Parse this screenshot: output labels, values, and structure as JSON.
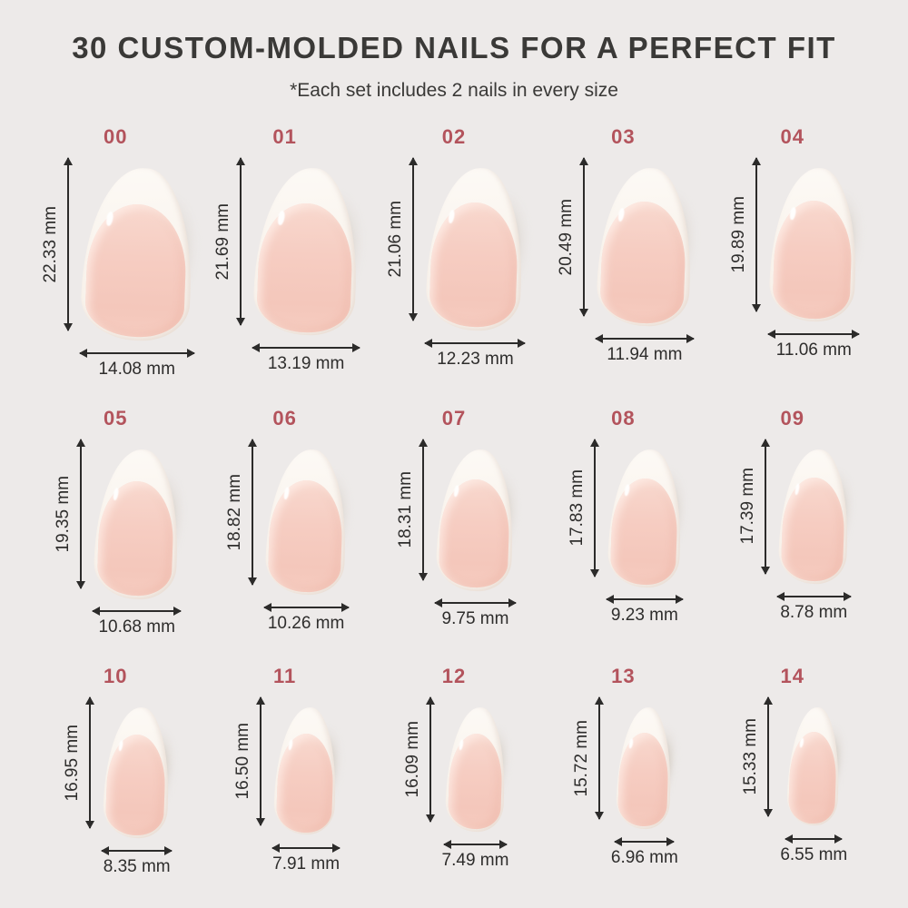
{
  "header": {
    "title": "30 CUSTOM-MOLDED NAILS FOR A PERFECT FIT",
    "subtitle": "*Each set includes 2 nails in every size"
  },
  "units": "mm",
  "colors": {
    "background": "#edeae9",
    "title_text": "#3a3937",
    "size_number": "#b3535c",
    "measurement_text": "#2e2d2c",
    "arrow": "#2c2b2a",
    "nail_tip_white": "#faf5ef",
    "nail_bed_pink": "#f6cdc2",
    "nail_shadow": "#aca08d"
  },
  "sizes": [
    {
      "id": "00",
      "height": "22.33 mm",
      "width": "14.08 mm",
      "height_mm": 22.33,
      "width_mm": 14.08
    },
    {
      "id": "01",
      "height": "21.69 mm",
      "width": "13.19 mm",
      "height_mm": 21.69,
      "width_mm": 13.19
    },
    {
      "id": "02",
      "height": "21.06 mm",
      "width": "12.23 mm",
      "height_mm": 21.06,
      "width_mm": 12.23
    },
    {
      "id": "03",
      "height": "20.49 mm",
      "width": "11.94 mm",
      "height_mm": 20.49,
      "width_mm": 11.94
    },
    {
      "id": "04",
      "height": "19.89 mm",
      "width": "11.06 mm",
      "height_mm": 19.89,
      "width_mm": 11.06
    },
    {
      "id": "05",
      "height": "19.35 mm",
      "width": "10.68 mm",
      "height_mm": 19.35,
      "width_mm": 10.68
    },
    {
      "id": "06",
      "height": "18.82 mm",
      "width": "10.26 mm",
      "height_mm": 18.82,
      "width_mm": 10.26
    },
    {
      "id": "07",
      "height": "18.31 mm",
      "width": "9.75 mm",
      "height_mm": 18.31,
      "width_mm": 9.75
    },
    {
      "id": "08",
      "height": "17.83 mm",
      "width": "9.23 mm",
      "height_mm": 17.83,
      "width_mm": 9.23
    },
    {
      "id": "09",
      "height": "17.39 mm",
      "width": "8.78 mm",
      "height_mm": 17.39,
      "width_mm": 8.78
    },
    {
      "id": "10",
      "height": "16.95 mm",
      "width": "8.35 mm",
      "height_mm": 16.95,
      "width_mm": 8.35
    },
    {
      "id": "11",
      "height": "16.50 mm",
      "width": "7.91 mm",
      "height_mm": 16.5,
      "width_mm": 7.91
    },
    {
      "id": "12",
      "height": "16.09 mm",
      "width": "7.49 mm",
      "height_mm": 16.09,
      "width_mm": 7.49
    },
    {
      "id": "13",
      "height": "15.72 mm",
      "width": "6.96 mm",
      "height_mm": 15.72,
      "width_mm": 6.96
    },
    {
      "id": "14",
      "height": "15.33 mm",
      "width": "6.55 mm",
      "height_mm": 15.33,
      "width_mm": 6.55
    }
  ]
}
